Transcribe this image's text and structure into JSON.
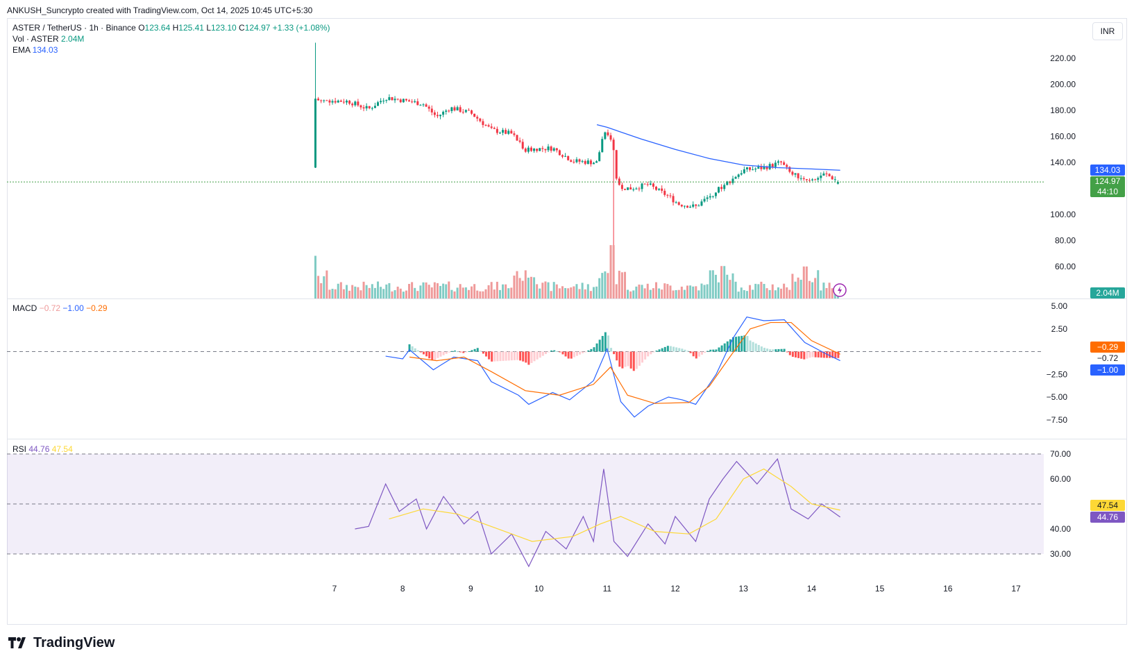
{
  "attribution": "ANKUSH_Suncrypto created with TradingView.com, Oct 14, 2025 10:45 UTC+5:30",
  "currency_button": "INR",
  "brand": "TradingView",
  "colors": {
    "up": "#089981",
    "down": "#f23645",
    "ema": "#2962ff",
    "macd_signal": "#ff6d00",
    "rsi": "#7e57c2",
    "rsi_ma": "#fdd835",
    "price_line": "#43a047"
  },
  "icons": [
    "tradingview-logo-icon",
    "lightning-icon"
  ],
  "legend": {
    "symbol": "ASTER / TetherUS · 1h · Binance",
    "o_label": "O",
    "o_value": "123.64",
    "h_label": "H",
    "h_value": "125.41",
    "l_label": "L",
    "l_value": "123.10",
    "c_label": "C",
    "c_value": "124.97",
    "change": "+1.33 (+1.08%)",
    "vol_label": "Vol · ASTER",
    "vol_value": "2.04M",
    "ema_label": "EMA",
    "ema_value": "134.03",
    "macd_label": "MACD",
    "macd_hist": "−0.72",
    "macd_line": "−1.00",
    "macd_signal": "−0.29",
    "rsi_label": "RSI",
    "rsi_value": "44.76",
    "rsi_ma": "47.54"
  },
  "badges": {
    "ema": "134.03",
    "price": "124.97",
    "countdown": "44:10",
    "volume": "2.04M",
    "macd_signal": "−0.29",
    "macd_hist": "−0.72",
    "macd_line": "−1.00",
    "rsi_ma": "47.54",
    "rsi": "44.76"
  },
  "chart_data": [
    {
      "type": "candlestick",
      "title": "ASTER / TetherUS · 1h · Binance",
      "x_ticks": [
        "7",
        "8",
        "9",
        "10",
        "11",
        "12",
        "13",
        "14",
        "15",
        "16",
        "17"
      ],
      "y_ticks": [
        "220.00",
        "200.00",
        "180.00",
        "160.00",
        "140.00",
        "100.00",
        "80.00",
        "60.00"
      ],
      "ylim": [
        44,
        232
      ],
      "approx_close_path": [
        {
          "day": 6.72,
          "price": 188
        },
        {
          "day": 7.2,
          "price": 187
        },
        {
          "day": 7.5,
          "price": 181
        },
        {
          "day": 7.75,
          "price": 190
        },
        {
          "day": 8.3,
          "price": 185
        },
        {
          "day": 8.5,
          "price": 175
        },
        {
          "day": 8.7,
          "price": 182
        },
        {
          "day": 9.0,
          "price": 178
        },
        {
          "day": 9.3,
          "price": 165
        },
        {
          "day": 9.6,
          "price": 162
        },
        {
          "day": 9.8,
          "price": 150
        },
        {
          "day": 10.2,
          "price": 151
        },
        {
          "day": 10.5,
          "price": 141
        },
        {
          "day": 10.85,
          "price": 140
        },
        {
          "day": 10.95,
          "price": 162
        },
        {
          "day": 11.08,
          "price": 158
        },
        {
          "day": 11.15,
          "price": 121
        },
        {
          "day": 11.35,
          "price": 120
        },
        {
          "day": 11.6,
          "price": 123
        },
        {
          "day": 11.9,
          "price": 114
        },
        {
          "day": 12.05,
          "price": 108
        },
        {
          "day": 12.3,
          "price": 106
        },
        {
          "day": 12.55,
          "price": 116
        },
        {
          "day": 12.75,
          "price": 124
        },
        {
          "day": 13.0,
          "price": 134
        },
        {
          "day": 13.3,
          "price": 136
        },
        {
          "day": 13.55,
          "price": 140
        },
        {
          "day": 13.7,
          "price": 131
        },
        {
          "day": 13.95,
          "price": 127
        },
        {
          "day": 14.2,
          "price": 131
        },
        {
          "day": 14.42,
          "price": 124.97
        }
      ],
      "last": {
        "open": 123.64,
        "high": 125.41,
        "low": 123.1,
        "close": 124.97
      },
      "ema": {
        "value": 134.03,
        "points": [
          {
            "day": 10.85,
            "price": 169
          },
          {
            "day": 11.0,
            "price": 167
          },
          {
            "day": 11.5,
            "price": 158
          },
          {
            "day": 12.0,
            "price": 150
          },
          {
            "day": 12.5,
            "price": 143
          },
          {
            "day": 13.0,
            "price": 138
          },
          {
            "day": 13.5,
            "price": 136
          },
          {
            "day": 14.0,
            "price": 135
          },
          {
            "day": 14.42,
            "price": 134
          }
        ]
      }
    },
    {
      "type": "bar",
      "title": "Vol · ASTER",
      "last_value": "2.04M",
      "spikes": [
        {
          "day": 6.72,
          "relative": 1.0
        },
        {
          "day": 9.8,
          "relative": 0.66
        },
        {
          "day": 11.08,
          "relative": 1.25
        },
        {
          "day": 12.7,
          "relative": 0.76
        },
        {
          "day": 13.9,
          "relative": 0.75
        }
      ]
    },
    {
      "type": "line",
      "title": "MACD",
      "y_ticks": [
        "5.00",
        "2.50",
        "−2.50",
        "−5.00",
        "−7.50"
      ],
      "ylim": [
        -8.5,
        5.5
      ],
      "series": [
        {
          "name": "MACD",
          "values": [
            {
              "day": 7.75,
              "v": -0.5
            },
            {
              "day": 8.0,
              "v": -0.8
            },
            {
              "day": 8.1,
              "v": 0.2
            },
            {
              "day": 8.45,
              "v": -2.0
            },
            {
              "day": 8.75,
              "v": -0.6
            },
            {
              "day": 9.1,
              "v": -1.0
            },
            {
              "day": 9.3,
              "v": -3.3
            },
            {
              "day": 9.7,
              "v": -4.8
            },
            {
              "day": 9.85,
              "v": -5.8
            },
            {
              "day": 10.2,
              "v": -4.5
            },
            {
              "day": 10.45,
              "v": -5.3
            },
            {
              "day": 10.8,
              "v": -3.2
            },
            {
              "day": 11.0,
              "v": 0.3
            },
            {
              "day": 11.2,
              "v": -5.5
            },
            {
              "day": 11.4,
              "v": -7.2
            },
            {
              "day": 11.6,
              "v": -6.0
            },
            {
              "day": 11.9,
              "v": -5.0
            },
            {
              "day": 12.1,
              "v": -5.3
            },
            {
              "day": 12.3,
              "v": -5.8
            },
            {
              "day": 12.6,
              "v": -2.5
            },
            {
              "day": 12.85,
              "v": 1.5
            },
            {
              "day": 13.05,
              "v": 3.8
            },
            {
              "day": 13.3,
              "v": 3.4
            },
            {
              "day": 13.6,
              "v": 3.5
            },
            {
              "day": 13.9,
              "v": 1.0
            },
            {
              "day": 14.2,
              "v": -0.2
            },
            {
              "day": 14.42,
              "v": -1.0
            }
          ]
        },
        {
          "name": "Signal",
          "values": [
            {
              "day": 8.1,
              "v": -0.6
            },
            {
              "day": 8.5,
              "v": -1.0
            },
            {
              "day": 8.9,
              "v": -0.6
            },
            {
              "day": 9.3,
              "v": -2.2
            },
            {
              "day": 9.8,
              "v": -4.3
            },
            {
              "day": 10.3,
              "v": -4.8
            },
            {
              "day": 10.8,
              "v": -3.6
            },
            {
              "day": 11.05,
              "v": -1.7
            },
            {
              "day": 11.3,
              "v": -4.8
            },
            {
              "day": 11.7,
              "v": -5.7
            },
            {
              "day": 12.2,
              "v": -5.6
            },
            {
              "day": 12.5,
              "v": -3.8
            },
            {
              "day": 12.8,
              "v": -0.6
            },
            {
              "day": 13.1,
              "v": 2.5
            },
            {
              "day": 13.4,
              "v": 3.2
            },
            {
              "day": 13.7,
              "v": 3.2
            },
            {
              "day": 14.0,
              "v": 1.2
            },
            {
              "day": 14.42,
              "v": -0.29
            }
          ]
        }
      ]
    },
    {
      "type": "line",
      "title": "RSI",
      "y_ticks": [
        "70.00",
        "60.00",
        "40.00",
        "30.00"
      ],
      "ylim": [
        22,
        72
      ],
      "series": [
        {
          "name": "RSI",
          "values": [
            {
              "day": 7.3,
              "v": 40
            },
            {
              "day": 7.5,
              "v": 41
            },
            {
              "day": 7.75,
              "v": 58
            },
            {
              "day": 7.95,
              "v": 47
            },
            {
              "day": 8.2,
              "v": 52
            },
            {
              "day": 8.35,
              "v": 40
            },
            {
              "day": 8.6,
              "v": 53
            },
            {
              "day": 8.9,
              "v": 42
            },
            {
              "day": 9.1,
              "v": 47
            },
            {
              "day": 9.3,
              "v": 30
            },
            {
              "day": 9.6,
              "v": 38
            },
            {
              "day": 9.85,
              "v": 25
            },
            {
              "day": 10.1,
              "v": 39
            },
            {
              "day": 10.4,
              "v": 32
            },
            {
              "day": 10.65,
              "v": 45
            },
            {
              "day": 10.8,
              "v": 35
            },
            {
              "day": 10.95,
              "v": 64
            },
            {
              "day": 11.1,
              "v": 35
            },
            {
              "day": 11.3,
              "v": 29
            },
            {
              "day": 11.6,
              "v": 42
            },
            {
              "day": 11.85,
              "v": 34
            },
            {
              "day": 12.0,
              "v": 45
            },
            {
              "day": 12.3,
              "v": 35
            },
            {
              "day": 12.5,
              "v": 52
            },
            {
              "day": 12.7,
              "v": 60
            },
            {
              "day": 12.9,
              "v": 67
            },
            {
              "day": 13.2,
              "v": 58
            },
            {
              "day": 13.5,
              "v": 68
            },
            {
              "day": 13.7,
              "v": 48
            },
            {
              "day": 13.95,
              "v": 44
            },
            {
              "day": 14.15,
              "v": 50
            },
            {
              "day": 14.42,
              "v": 44.76
            }
          ]
        },
        {
          "name": "RSI MA",
          "values": [
            {
              "day": 7.8,
              "v": 44
            },
            {
              "day": 8.3,
              "v": 48
            },
            {
              "day": 8.8,
              "v": 46
            },
            {
              "day": 9.3,
              "v": 41
            },
            {
              "day": 9.9,
              "v": 35
            },
            {
              "day": 10.5,
              "v": 37
            },
            {
              "day": 10.9,
              "v": 42
            },
            {
              "day": 11.2,
              "v": 45
            },
            {
              "day": 11.7,
              "v": 39
            },
            {
              "day": 12.2,
              "v": 38
            },
            {
              "day": 12.6,
              "v": 44
            },
            {
              "day": 13.0,
              "v": 60
            },
            {
              "day": 13.3,
              "v": 64
            },
            {
              "day": 13.7,
              "v": 57
            },
            {
              "day": 14.0,
              "v": 50
            },
            {
              "day": 14.42,
              "v": 47.54
            }
          ]
        }
      ]
    }
  ]
}
